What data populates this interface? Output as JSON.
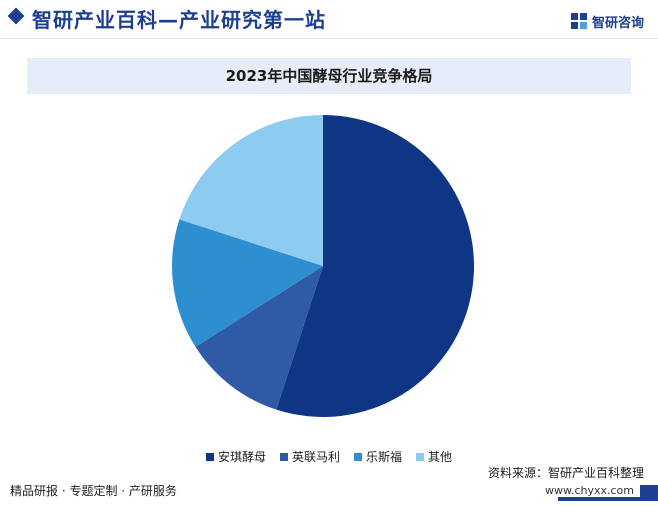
{
  "header": {
    "title": "智研产业百科—产业研究第一站",
    "brand": "智研咨询"
  },
  "chart_data": {
    "type": "pie",
    "title": "2023年中国酵母行业竞争格局",
    "labels": [
      "安琪酵母",
      "英联马利",
      "乐斯福",
      "其他"
    ],
    "values": [
      55,
      11,
      14,
      20
    ],
    "unit": "%",
    "colors": [
      "#0f3585",
      "#2f5aa5",
      "#2e8fd0",
      "#8ecbf1"
    ],
    "legend_position": "bottom"
  },
  "source": "资料来源：智研产业百科整理",
  "footer": {
    "left": "精品研报 · 专题定制 · 产研服务",
    "url": "www.chyxx.com"
  }
}
